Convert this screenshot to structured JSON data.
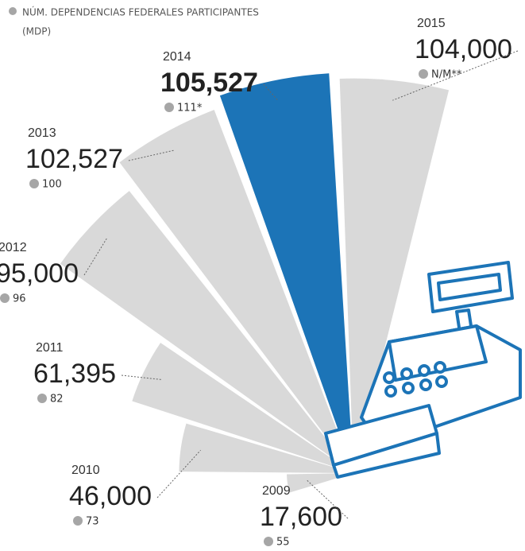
{
  "chart_data": {
    "type": "radial-bar",
    "categories": [
      "2009",
      "2010",
      "2011",
      "2012",
      "2013",
      "2014",
      "2015"
    ],
    "rlim": [
      0,
      110000
    ],
    "annotations": [
      "(MDP)"
    ],
    "series": [
      {
        "colors": [
          "#d9d9d9",
          "#d9d9d9",
          "#d9d9d9",
          "#d9d9d9",
          "#d9d9d9",
          "#1c74b7",
          "#d9d9d9"
        ],
        "values": [
          17600,
          46000,
          61395,
          95000,
          102527,
          105527,
          104000
        ],
        "value_labels": [
          "17,600",
          "46,000",
          "61,395",
          "95,000",
          "102,527",
          "105,527",
          "104,000"
        ]
      },
      {
        "name": "NÚM. DEPENDENCIAS FEDERALES PARTICIPANTES",
        "color": "#a6a6a6",
        "values": [
          55,
          73,
          82,
          96,
          100,
          111,
          null
        ],
        "value_labels": [
          "55",
          "73",
          "82",
          "96",
          "100",
          "111*",
          "N/M**"
        ]
      }
    ]
  }
}
